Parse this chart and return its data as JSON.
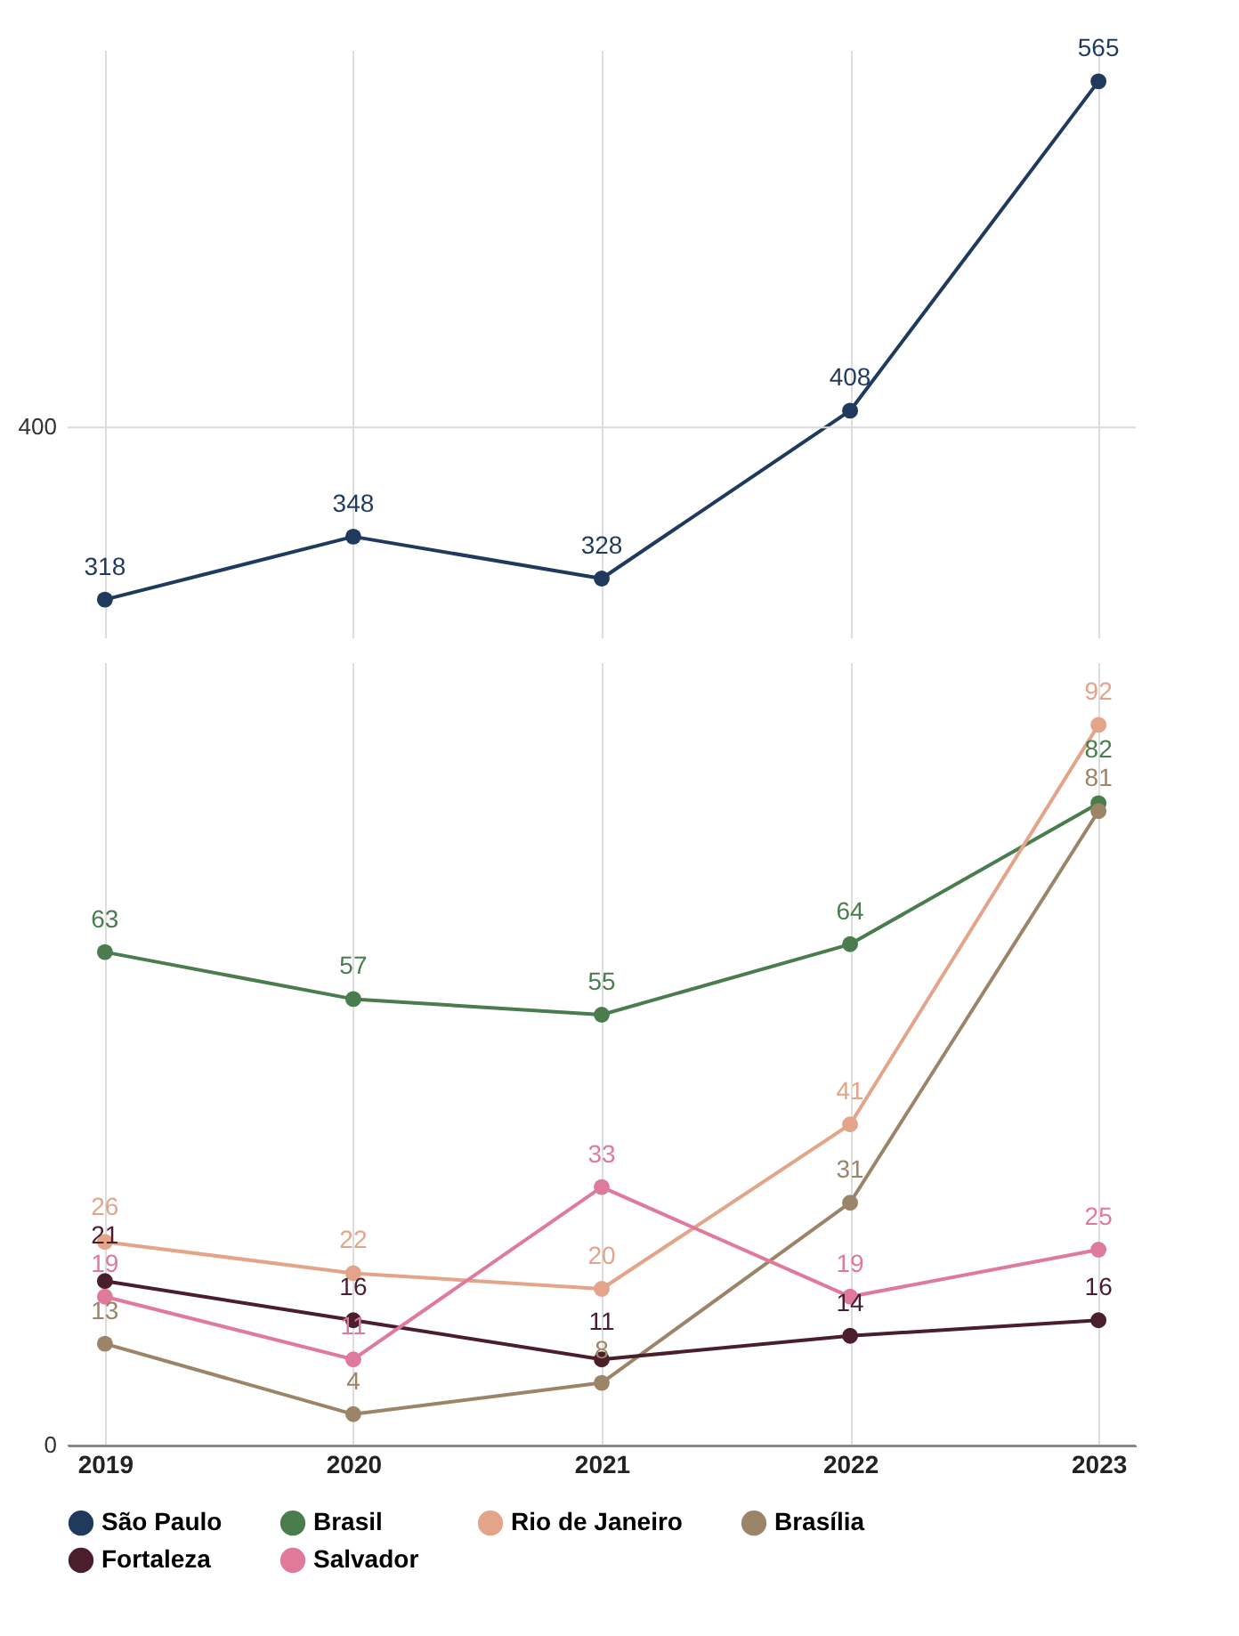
{
  "chart_data": [
    {
      "type": "line",
      "categories": [
        "2019",
        "2020",
        "2021",
        "2022",
        "2023"
      ],
      "ylim": [
        300,
        580
      ],
      "ref_lines": [
        {
          "axis": "y",
          "value": 400,
          "label": "400",
          "color": "#d9d9d9"
        }
      ],
      "tick_labels": "y",
      "grid": "x",
      "marker": "circle",
      "data_labels": true,
      "legend": "bottom",
      "series": [
        {
          "name": "São Paulo",
          "color": "#1f3a5c",
          "values": [
            318,
            348,
            328,
            408,
            565
          ]
        }
      ]
    },
    {
      "type": "line",
      "categories": [
        "2019",
        "2020",
        "2021",
        "2022",
        "2023"
      ],
      "ylim": [
        0,
        100
      ],
      "ref_lines": [
        {
          "axis": "y",
          "value": 0,
          "label": "0",
          "color": "#888888"
        }
      ],
      "grid": "x",
      "marker": "circle",
      "data_labels": true,
      "legend": "bottom",
      "series": [
        {
          "name": "Brasil",
          "color": "#4a7c4e",
          "values": [
            63,
            57,
            55,
            64,
            82
          ]
        },
        {
          "name": "Rio de Janeiro",
          "color": "#e3a48a",
          "values": [
            26,
            22,
            20,
            41,
            92
          ]
        },
        {
          "name": "Brasília",
          "color": "#9c8468",
          "values": [
            13,
            4,
            8,
            31,
            81
          ]
        },
        {
          "name": "Fortaleza",
          "color": "#4a1e2a",
          "values": [
            21,
            16,
            11,
            14,
            16
          ]
        },
        {
          "name": "Salvador",
          "color": "#e07a9a",
          "values": [
            19,
            11,
            33,
            19,
            25
          ]
        }
      ]
    }
  ]
}
